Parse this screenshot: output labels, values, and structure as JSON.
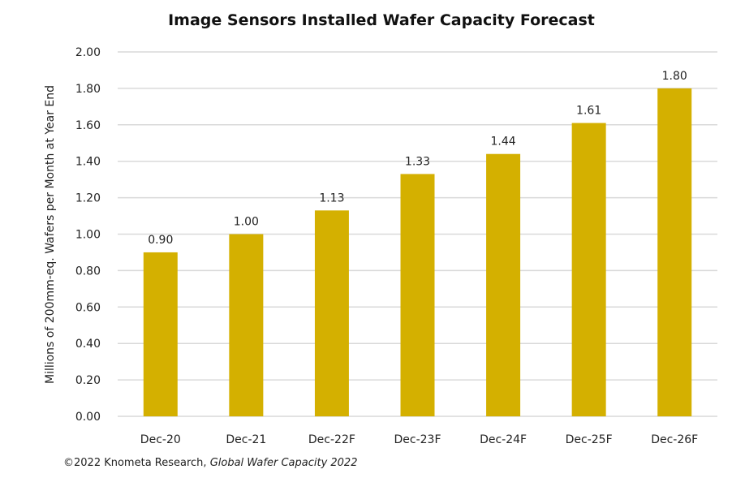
{
  "chart_data": {
    "type": "bar",
    "title": "Image Sensors Installed Wafer Capacity Forecast",
    "xlabel": "",
    "ylabel": "Millions of 200mm-eq. Wafers per Month at Year End",
    "categories": [
      "Dec-20",
      "Dec-21",
      "Dec-22F",
      "Dec-23F",
      "Dec-24F",
      "Dec-25F",
      "Dec-26F"
    ],
    "values": [
      0.9,
      1.0,
      1.13,
      1.33,
      1.44,
      1.61,
      1.8
    ],
    "data_labels": [
      "0.90",
      "1.00",
      "1.13",
      "1.33",
      "1.44",
      "1.61",
      "1.80"
    ],
    "ylim": [
      0,
      2.0
    ],
    "yticks": [
      "0.00",
      "0.20",
      "0.40",
      "0.60",
      "0.80",
      "1.00",
      "1.20",
      "1.40",
      "1.60",
      "1.80",
      "2.00"
    ],
    "grid": true,
    "legend": "none",
    "bar_color": "#D4B000",
    "grid_color": "#d9d9d9"
  },
  "source": {
    "prefix": "©2022 Knometa Research, ",
    "italic": "Global Wafer Capacity 2022"
  }
}
